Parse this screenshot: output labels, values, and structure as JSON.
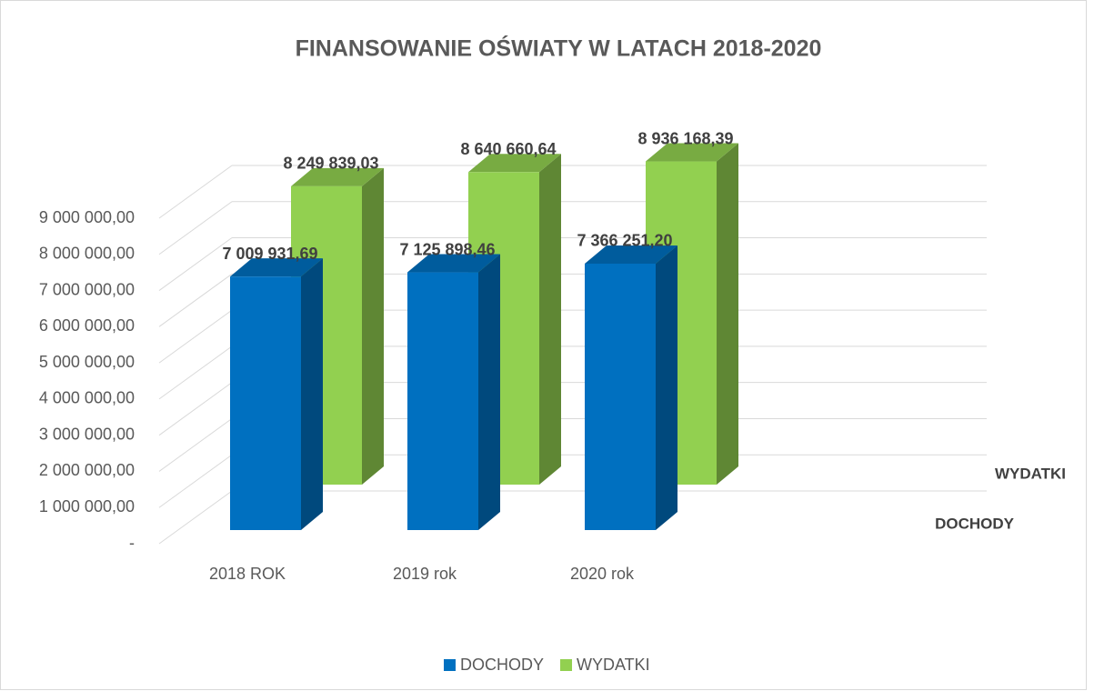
{
  "chart_data": {
    "type": "bar3d",
    "title": "FINANSOWANIE OŚWIATY W LATACH 2018-2020",
    "categories": [
      "2018 ROK",
      "2019 rok",
      "2020 rok"
    ],
    "series": [
      {
        "name": "DOCHODY",
        "color": "#0070c0",
        "values": [
          7009931.69,
          7125898.46,
          7366251.2
        ],
        "value_labels": [
          "7 009 931,69",
          "7 125 898,46",
          "7 366 251,20"
        ]
      },
      {
        "name": "WYDATKI",
        "color": "#92d050",
        "values": [
          8249839.03,
          8640660.64,
          8936168.39
        ],
        "value_labels": [
          "8 249 839,03",
          "8 640 660,64",
          "8 936 168,39"
        ]
      }
    ],
    "ylim": [
      0,
      9000000
    ],
    "yticks": [
      {
        "value": 0,
        "label": "-"
      },
      {
        "value": 1000000,
        "label": "1 000 000,00"
      },
      {
        "value": 2000000,
        "label": "2 000 000,00"
      },
      {
        "value": 3000000,
        "label": "3 000 000,00"
      },
      {
        "value": 4000000,
        "label": "4 000 000,00"
      },
      {
        "value": 5000000,
        "label": "5 000 000,00"
      },
      {
        "value": 6000000,
        "label": "6 000 000,00"
      },
      {
        "value": 7000000,
        "label": "7 000 000,00"
      },
      {
        "value": 8000000,
        "label": "8 000 000,00"
      },
      {
        "value": 9000000,
        "label": "9 000 000,00"
      }
    ],
    "grid": true,
    "legend": "bottom"
  }
}
